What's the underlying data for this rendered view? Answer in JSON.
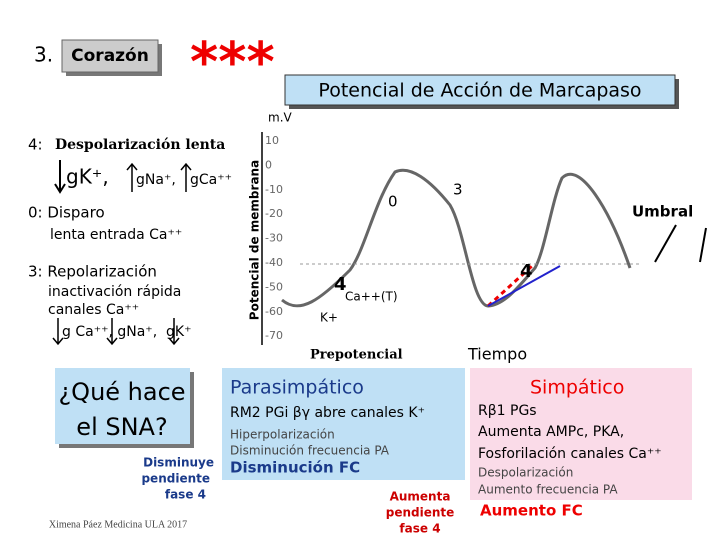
{
  "header": {
    "number": "3.",
    "topic": "Corazón",
    "stars": "***",
    "title": "Potencial de Acción de Marcapaso"
  },
  "left": {
    "phase4_num": "4:",
    "phase4": "Despolarización lenta",
    "phase4_ions": "gK⁺, ",
    "phase4_na": "gNa⁺, ",
    "phase4_ca": "gCa⁺⁺",
    "phase0": "0: Disparo",
    "phase0_detail": "lenta entrada Ca⁺⁺",
    "phase3": "3: Repolarización",
    "phase3_l1": "inactivación rápida",
    "phase3_l2": "canales Ca⁺⁺",
    "phase3_l3": "g Ca⁺⁺, gNa⁺,  gK⁺"
  },
  "graph": {
    "unit": "m.V",
    "axis_label": "Potencial de membrana",
    "ticks": [
      "10",
      "0",
      "-10",
      "-20",
      "-30",
      "-40",
      "-50",
      "-60",
      "-70"
    ],
    "label_0": "0",
    "label_3": "3",
    "label_4a": "4",
    "label_4b": "4",
    "ca": "Ca++(T)",
    "k": "K+",
    "threshold": "Umbral",
    "prepotential": "Prepotencial",
    "time": "Tiempo"
  },
  "sna": {
    "question": [
      "¿Qué hace",
      "el SNA?"
    ],
    "decrease_slope": [
      "Disminuye",
      "pendiente",
      "fase 4"
    ],
    "increase_slope": [
      "Aumenta",
      "pendiente",
      "fase 4"
    ],
    "credit": "Ximena Páez Medicina ULA 2017"
  },
  "parasympathetic": {
    "title": "Parasimpático",
    "receptor": "RM2 PGi βγ abre canales K⁺",
    "effect1": "Hiperpolarización",
    "effect2": "Disminución frecuencia PA",
    "result": "Disminución FC"
  },
  "sympathetic": {
    "title": "Simpático",
    "receptor": "Rβ1 PGs",
    "l1": "Aumenta AMPc, PKA,",
    "l2": "Fosforilación canales Ca⁺⁺",
    "effect1": "Despolarización",
    "effect2": "Aumento frecuencia PA",
    "result": "Aumento FC"
  }
}
